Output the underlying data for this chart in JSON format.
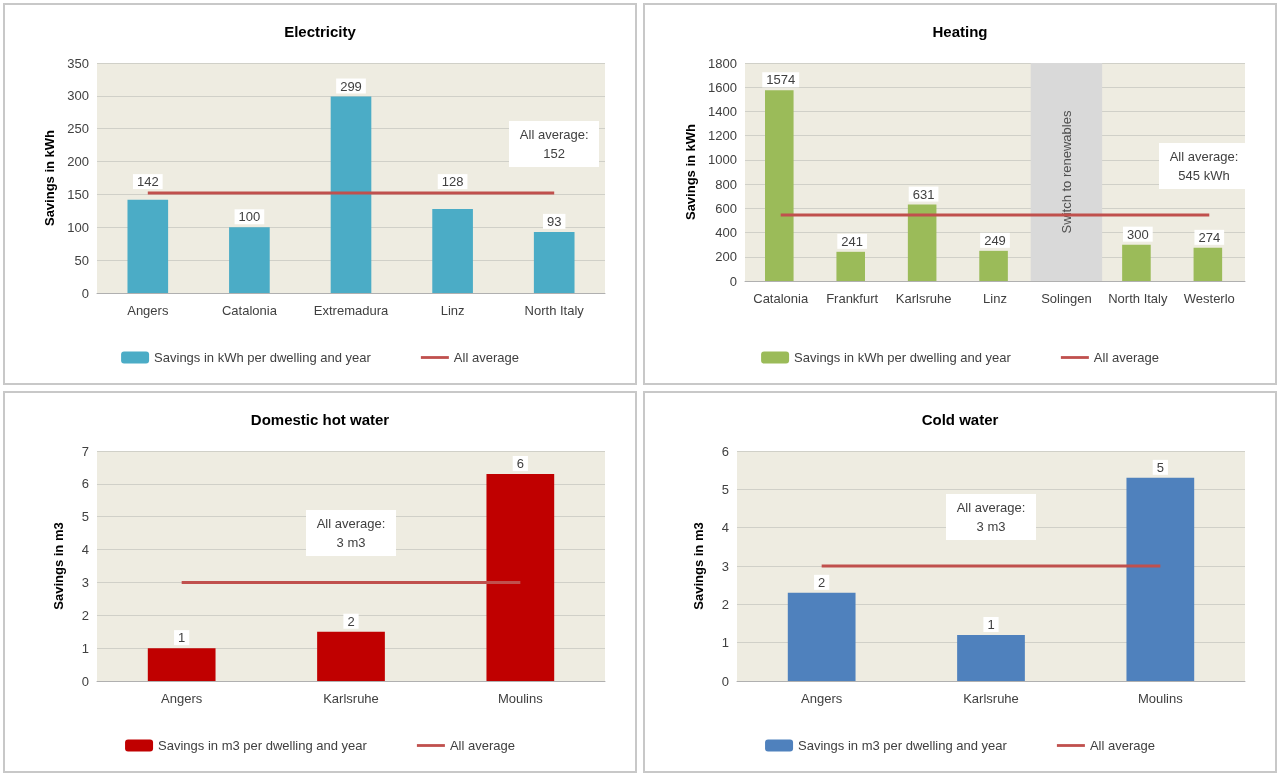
{
  "chart_data": [
    {
      "type": "bar",
      "title": "Electricity",
      "ylabel": "Savings in kWh",
      "categories": [
        "Angers",
        "Catalonia",
        "Extremadura",
        "Linz",
        "North Italy"
      ],
      "series": [
        {
          "name": "Savings in kWh per dwelling and year",
          "color": "#4bacc6",
          "values": [
            142,
            100,
            299,
            128,
            93
          ],
          "value_labels": [
            "142",
            "100",
            "299",
            "128",
            "93"
          ]
        },
        {
          "type": "line",
          "name": "All average",
          "color": "#c0504d",
          "values": [
            152,
            152,
            152,
            152,
            152
          ]
        }
      ],
      "ylim": [
        0,
        350
      ],
      "yticks": [
        0,
        50,
        100,
        150,
        200,
        250,
        300,
        350
      ],
      "grid": "y",
      "legend": "bottom",
      "marker": "none",
      "annotations": [
        {
          "text": "All average: 152",
          "x": "North Italy",
          "y": 152
        }
      ]
    },
    {
      "type": "bar",
      "title": "Heating",
      "ylabel": "Savings in kWh",
      "categories": [
        "Catalonia",
        "Frankfurt",
        "Karlsruhe",
        "Linz",
        "Solingen",
        "North Italy",
        "Westerlo"
      ],
      "series": [
        {
          "name": "Savings in kWh per dwelling and year",
          "color": "#9bbb59",
          "values": [
            1574,
            241,
            631,
            249,
            null,
            300,
            274
          ],
          "value_labels": [
            "1574",
            "241",
            "631",
            "249",
            null,
            "300",
            "274"
          ]
        },
        {
          "type": "line",
          "name": "All average",
          "color": "#c0504d",
          "values": [
            545,
            545,
            545,
            545,
            545,
            545,
            545
          ]
        }
      ],
      "ylim": [
        0,
        1800
      ],
      "yticks": [
        0,
        200,
        400,
        600,
        800,
        1000,
        1200,
        1400,
        1600,
        1800
      ],
      "grid": "y",
      "legend": "bottom",
      "marker": "none",
      "bands": [
        {
          "axis": "x",
          "from": "Solingen",
          "to": "Solingen",
          "label": "Switch to renewables",
          "color": "#d9d9d9"
        }
      ],
      "annotations": [
        {
          "text": "All average: 545 kWh",
          "x": "Westerlo",
          "y": 545
        }
      ]
    },
    {
      "type": "bar",
      "title": "Domestic hot water",
      "ylabel": "Savings in m3",
      "categories": [
        "Angers",
        "Karlsruhe",
        "Moulins"
      ],
      "series": [
        {
          "name": "Savings in m3 per dwelling and year",
          "color": "#c00000",
          "values": [
            1.0,
            1.5,
            6.3
          ],
          "value_labels": [
            "1",
            "2",
            "6"
          ]
        },
        {
          "type": "line",
          "name": "All average",
          "color": "#c0504d",
          "values": [
            3,
            3,
            3
          ]
        }
      ],
      "ylim": [
        0,
        7
      ],
      "yticks": [
        0,
        1,
        2,
        3,
        4,
        5,
        6,
        7
      ],
      "grid": "y",
      "legend": "bottom",
      "marker": "none",
      "annotations": [
        {
          "text": "All average: 3 m3",
          "x": "Karlsruhe",
          "y": 3
        }
      ]
    },
    {
      "type": "bar",
      "title": "Cold water",
      "ylabel": "Savings in m3",
      "categories": [
        "Angers",
        "Karlsruhe",
        "Moulins"
      ],
      "series": [
        {
          "name": "Savings in m3 per dwelling and year",
          "color": "#4f81bd",
          "values": [
            2.3,
            1.2,
            5.3
          ],
          "value_labels": [
            "2",
            "1",
            "5"
          ]
        },
        {
          "type": "line",
          "name": "All average",
          "color": "#c0504d",
          "values": [
            3,
            3,
            3
          ]
        }
      ],
      "ylim": [
        0,
        6
      ],
      "yticks": [
        0,
        1,
        2,
        3,
        4,
        5,
        6
      ],
      "grid": "y",
      "legend": "bottom",
      "marker": "none",
      "annotations": [
        {
          "text": "All average: 3 m3",
          "x": "Karlsruhe",
          "y": 3
        }
      ]
    }
  ]
}
